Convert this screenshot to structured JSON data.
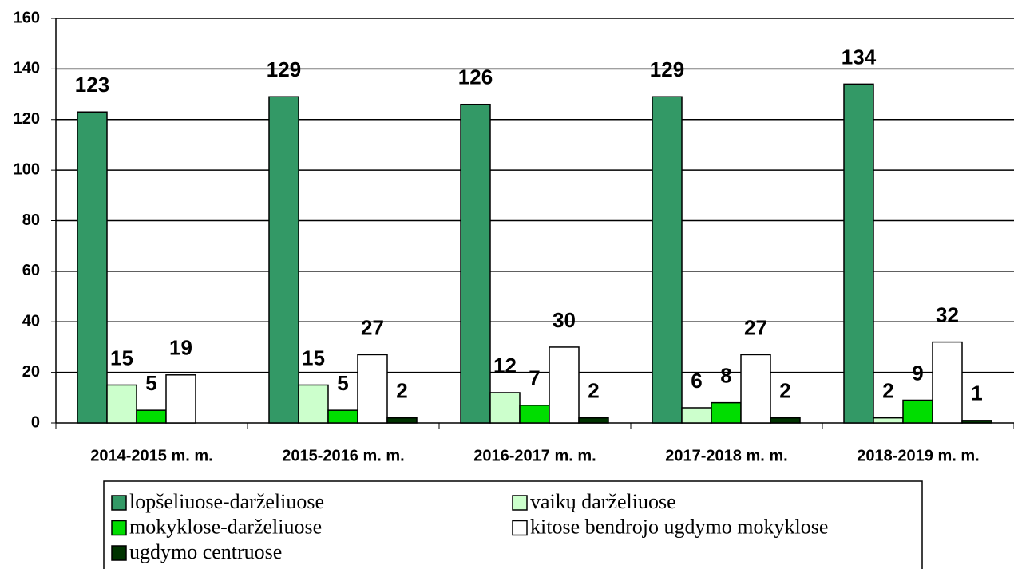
{
  "chart_data": {
    "type": "bar",
    "categories": [
      "2014-2015 m. m.",
      "2015-2016 m. m.",
      "2016-2017 m. m.",
      "2017-2018 m. m.",
      "2018-2019 m. m."
    ],
    "series": [
      {
        "name": "lopšeliuose-darželiuose",
        "color": "#339966",
        "values": [
          123,
          129,
          126,
          129,
          134
        ]
      },
      {
        "name": "vaikų darželiuose",
        "color": "#ccffcc",
        "values": [
          15,
          15,
          12,
          6,
          2
        ]
      },
      {
        "name": "mokyklose-darželiuose",
        "color": "#00dd00",
        "values": [
          5,
          5,
          7,
          8,
          9
        ]
      },
      {
        "name": "kitose bendrojo ugdymo mokyklose",
        "color": "#ffffff",
        "values": [
          19,
          27,
          30,
          27,
          32
        ]
      },
      {
        "name": "ugdymo centruose",
        "color": "#003300",
        "values": [
          null,
          2,
          2,
          2,
          1
        ]
      }
    ],
    "ylim": [
      0,
      160
    ],
    "yticks": [
      0,
      20,
      40,
      60,
      80,
      100,
      120,
      140,
      160
    ],
    "grid": true
  }
}
